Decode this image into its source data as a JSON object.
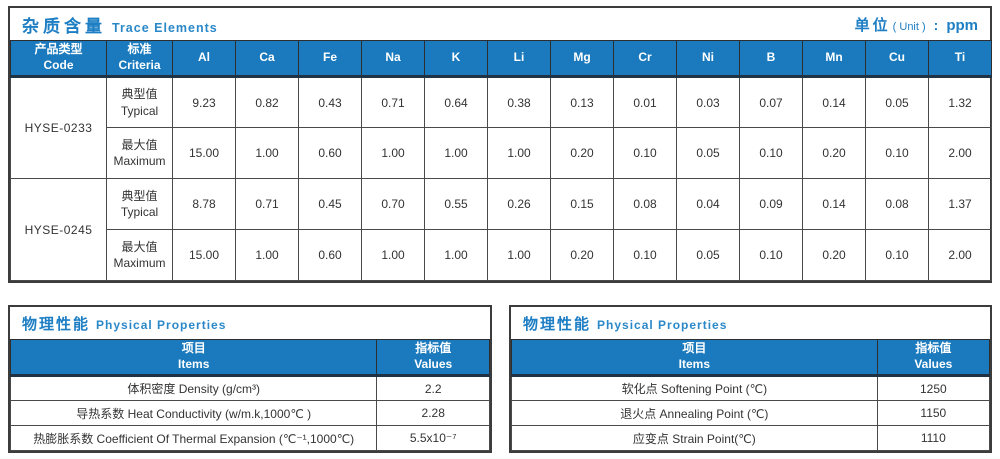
{
  "colors": {
    "header_blue": "#1a7abd",
    "title_blue": "#1e7ec4",
    "grid_border": "#4a4a4a",
    "text_dark": "#333333"
  },
  "trace_table": {
    "title_cn": "杂质含量",
    "title_en": "Trace Elements",
    "unit_label_cn": "单位",
    "unit_label_en": "( Unit )",
    "unit_colon": ":",
    "unit_value": "ppm",
    "col_code_cn": "产品类型",
    "col_code_en": "Code",
    "col_criteria_cn": "标准",
    "col_criteria_en": "Criteria",
    "elements": [
      "Al",
      "Ca",
      "Fe",
      "Na",
      "K",
      "Li",
      "Mg",
      "Cr",
      "Ni",
      "B",
      "Mn",
      "Cu",
      "Ti"
    ],
    "products": [
      {
        "code": "HYSE-0233",
        "rows": [
          {
            "criteria_cn": "典型值",
            "criteria_en": "Typical",
            "values": [
              "9.23",
              "0.82",
              "0.43",
              "0.71",
              "0.64",
              "0.38",
              "0.13",
              "0.01",
              "0.03",
              "0.07",
              "0.14",
              "0.05",
              "1.32"
            ]
          },
          {
            "criteria_cn": "最大值",
            "criteria_en": "Maximum",
            "values": [
              "15.00",
              "1.00",
              "0.60",
              "1.00",
              "1.00",
              "1.00",
              "0.20",
              "0.10",
              "0.05",
              "0.10",
              "0.20",
              "0.10",
              "2.00"
            ]
          }
        ]
      },
      {
        "code": "HYSE-0245",
        "rows": [
          {
            "criteria_cn": "典型值",
            "criteria_en": "Typical",
            "values": [
              "8.78",
              "0.71",
              "0.45",
              "0.70",
              "0.55",
              "0.26",
              "0.15",
              "0.08",
              "0.04",
              "0.09",
              "0.14",
              "0.08",
              "1.37"
            ]
          },
          {
            "criteria_cn": "最大值",
            "criteria_en": "Maximum",
            "values": [
              "15.00",
              "1.00",
              "0.60",
              "1.00",
              "1.00",
              "1.00",
              "0.20",
              "0.10",
              "0.05",
              "0.10",
              "0.20",
              "0.10",
              "2.00"
            ]
          }
        ]
      }
    ]
  },
  "physical_tables": [
    {
      "title_cn": "物理性能",
      "title_en": "Physical Properties",
      "header_items_cn": "项目",
      "header_items_en": "Items",
      "header_values_cn": "指标值",
      "header_values_en": "Values",
      "rows": [
        {
          "item": "体积密度 Density (g/cm³)",
          "value": "2.2"
        },
        {
          "item": "导热系数 Heat Conductivity (w/m.k,1000℃ )",
          "value": "2.28"
        },
        {
          "item": "热膨胀系数 Coefficient Of Thermal Expansion (℃⁻¹,1000℃)",
          "value": "5.5x10⁻⁷"
        }
      ]
    },
    {
      "title_cn": "物理性能",
      "title_en": "Physical Properties",
      "header_items_cn": "项目",
      "header_items_en": "Items",
      "header_values_cn": "指标值",
      "header_values_en": "Values",
      "rows": [
        {
          "item": "软化点 Softening Point (℃)",
          "value": "1250"
        },
        {
          "item": "退火点 Annealing Point (℃)",
          "value": "1150"
        },
        {
          "item": "应变点 Strain Point(℃)",
          "value": "1110"
        }
      ]
    }
  ]
}
